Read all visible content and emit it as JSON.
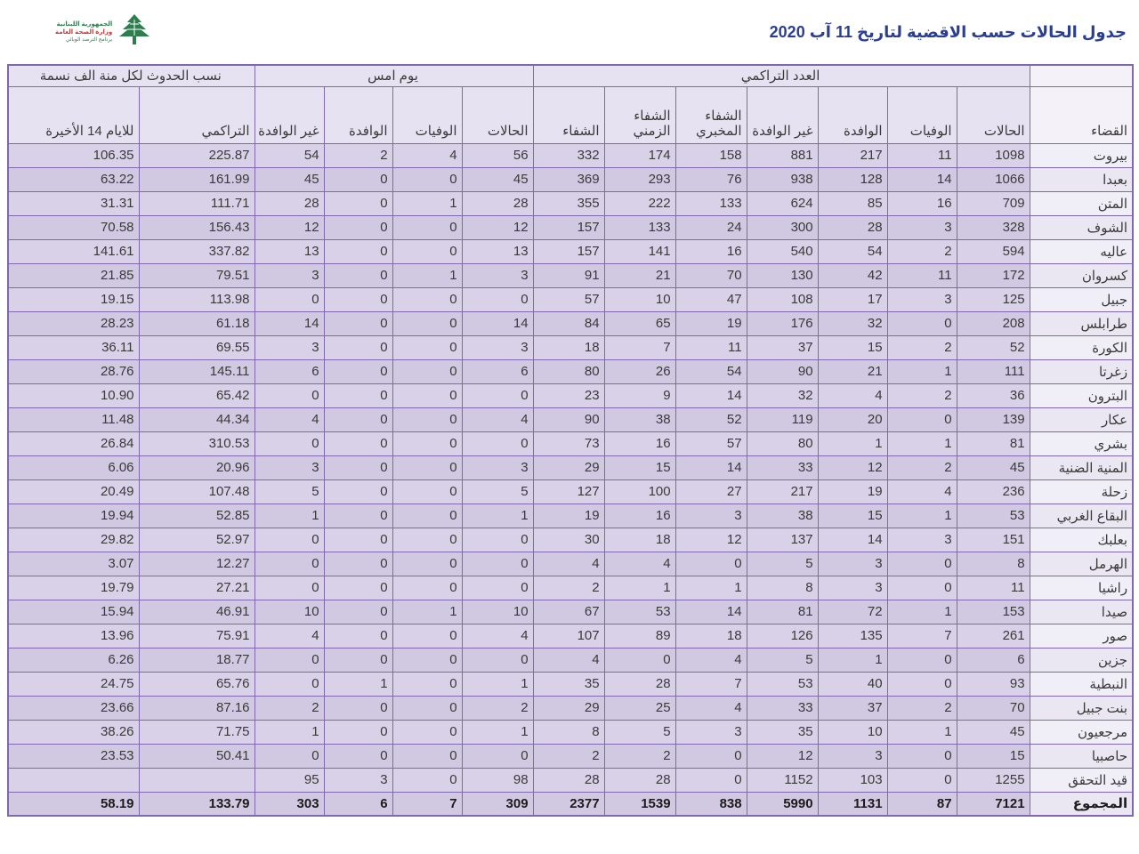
{
  "page": {
    "title": "جدول الحالات حسب الاقضية لتاريخ 11 آب 2020"
  },
  "logo": {
    "line1": "الجمهورية اللبنانية",
    "line2": "وزارة الصحة العامة",
    "line3": "برنامج الترصد الوبائي",
    "cedar_color": "#2e7d4f"
  },
  "colors": {
    "border_purple": "#8168ac",
    "cell_fill": "#d9d1e8",
    "cell_fill_alt": "#d1c8e1",
    "district_fill": "#f0eef6",
    "header_fill": "#e7e2f1",
    "title_blue": "#2b3f92"
  },
  "table": {
    "groups": {
      "cumulative": "العدد التراكمي",
      "yesterday": "يوم امس",
      "rates": "نسب الحدوث لكل منة الف نسمة"
    },
    "columns": {
      "district": "القضاء",
      "cases": "الحالات",
      "deaths": "الوفيات",
      "imported": "الوافدة",
      "non_imported": "غير الوافدة",
      "recovery_lab": "الشفاء المخبري",
      "recovery_time": "الشفاء الزمني",
      "recovery": "الشفاء",
      "y_cases": "الحالات",
      "y_deaths": "الوفيات",
      "y_imported": "الوافدة",
      "y_non_imported": "غير الوافدة",
      "rate_cumulative": "التراكمي",
      "rate_last14": "للايام 14 الأخيرة"
    },
    "rows": [
      [
        "بيروت",
        "1098",
        "11",
        "217",
        "881",
        "158",
        "174",
        "332",
        "56",
        "4",
        "2",
        "54",
        "225.87",
        "106.35"
      ],
      [
        "بعبدا",
        "1066",
        "14",
        "128",
        "938",
        "76",
        "293",
        "369",
        "45",
        "0",
        "0",
        "45",
        "161.99",
        "63.22"
      ],
      [
        "المتن",
        "709",
        "16",
        "85",
        "624",
        "133",
        "222",
        "355",
        "28",
        "1",
        "0",
        "28",
        "111.71",
        "31.31"
      ],
      [
        "الشوف",
        "328",
        "3",
        "28",
        "300",
        "24",
        "133",
        "157",
        "12",
        "0",
        "0",
        "12",
        "156.43",
        "70.58"
      ],
      [
        "عاليه",
        "594",
        "2",
        "54",
        "540",
        "16",
        "141",
        "157",
        "13",
        "0",
        "0",
        "13",
        "337.82",
        "141.61"
      ],
      [
        "كسروان",
        "172",
        "11",
        "42",
        "130",
        "70",
        "21",
        "91",
        "3",
        "1",
        "0",
        "3",
        "79.51",
        "21.85"
      ],
      [
        "جبيل",
        "125",
        "3",
        "17",
        "108",
        "47",
        "10",
        "57",
        "0",
        "0",
        "0",
        "0",
        "113.98",
        "19.15"
      ],
      [
        "طرابلس",
        "208",
        "0",
        "32",
        "176",
        "19",
        "65",
        "84",
        "14",
        "0",
        "0",
        "14",
        "61.18",
        "28.23"
      ],
      [
        "الكورة",
        "52",
        "2",
        "15",
        "37",
        "11",
        "7",
        "18",
        "3",
        "0",
        "0",
        "3",
        "69.55",
        "36.11"
      ],
      [
        "زغرتا",
        "111",
        "1",
        "21",
        "90",
        "54",
        "26",
        "80",
        "6",
        "0",
        "0",
        "6",
        "145.11",
        "28.76"
      ],
      [
        "البترون",
        "36",
        "2",
        "4",
        "32",
        "14",
        "9",
        "23",
        "0",
        "0",
        "0",
        "0",
        "65.42",
        "10.90"
      ],
      [
        "عكار",
        "139",
        "0",
        "20",
        "119",
        "52",
        "38",
        "90",
        "4",
        "0",
        "0",
        "4",
        "44.34",
        "11.48"
      ],
      [
        "بشري",
        "81",
        "1",
        "1",
        "80",
        "57",
        "16",
        "73",
        "0",
        "0",
        "0",
        "0",
        "310.53",
        "26.84"
      ],
      [
        "المنية الضنية",
        "45",
        "2",
        "12",
        "33",
        "14",
        "15",
        "29",
        "3",
        "0",
        "0",
        "3",
        "20.96",
        "6.06"
      ],
      [
        "زحلة",
        "236",
        "4",
        "19",
        "217",
        "27",
        "100",
        "127",
        "5",
        "0",
        "0",
        "5",
        "107.48",
        "20.49"
      ],
      [
        "البقاع الغربي",
        "53",
        "1",
        "15",
        "38",
        "3",
        "16",
        "19",
        "1",
        "0",
        "0",
        "1",
        "52.85",
        "19.94"
      ],
      [
        "بعلبك",
        "151",
        "3",
        "14",
        "137",
        "12",
        "18",
        "30",
        "0",
        "0",
        "0",
        "0",
        "52.97",
        "29.82"
      ],
      [
        "الهرمل",
        "8",
        "0",
        "3",
        "5",
        "0",
        "4",
        "4",
        "0",
        "0",
        "0",
        "0",
        "12.27",
        "3.07"
      ],
      [
        "راشيا",
        "11",
        "0",
        "3",
        "8",
        "1",
        "1",
        "2",
        "0",
        "0",
        "0",
        "0",
        "27.21",
        "19.79"
      ],
      [
        "صيدا",
        "153",
        "1",
        "72",
        "81",
        "14",
        "53",
        "67",
        "10",
        "1",
        "0",
        "10",
        "46.91",
        "15.94"
      ],
      [
        "صور",
        "261",
        "7",
        "135",
        "126",
        "18",
        "89",
        "107",
        "4",
        "0",
        "0",
        "4",
        "75.91",
        "13.96"
      ],
      [
        "جزين",
        "6",
        "0",
        "1",
        "5",
        "4",
        "0",
        "4",
        "0",
        "0",
        "0",
        "0",
        "18.77",
        "6.26"
      ],
      [
        "النبطية",
        "93",
        "0",
        "40",
        "53",
        "7",
        "28",
        "35",
        "1",
        "0",
        "1",
        "0",
        "65.76",
        "24.75"
      ],
      [
        "بنت جبيل",
        "70",
        "2",
        "37",
        "33",
        "4",
        "25",
        "29",
        "2",
        "0",
        "0",
        "2",
        "87.16",
        "23.66"
      ],
      [
        "مرجعيون",
        "45",
        "1",
        "10",
        "35",
        "3",
        "5",
        "8",
        "1",
        "0",
        "0",
        "1",
        "71.75",
        "38.26"
      ],
      [
        "حاصبيا",
        "15",
        "0",
        "3",
        "12",
        "0",
        "2",
        "2",
        "0",
        "0",
        "0",
        "0",
        "50.41",
        "23.53"
      ],
      [
        "قيد التحقق",
        "1255",
        "0",
        "103",
        "1152",
        "0",
        "28",
        "28",
        "98",
        "0",
        "3",
        "95",
        "",
        ""
      ],
      [
        "المجموع",
        "7121",
        "87",
        "1131",
        "5990",
        "838",
        "1539",
        "2377",
        "309",
        "7",
        "6",
        "303",
        "133.79",
        "58.19"
      ]
    ]
  }
}
